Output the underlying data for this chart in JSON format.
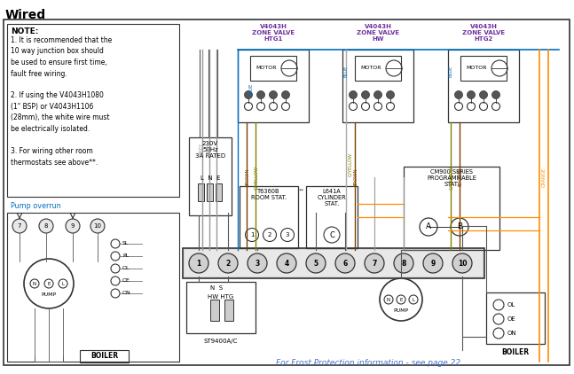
{
  "title": "Wired",
  "title_color": "#000000",
  "title_fontsize": 10,
  "bg_color": "#ffffff",
  "border_color": "#333333",
  "note_title": "NOTE:",
  "note_lines": [
    "1. It is recommended that the",
    "10 way junction box should",
    "be used to ensure first time,",
    "fault free wiring.",
    "",
    "2. If using the V4043H1080",
    "(1\" BSP) or V4043H1106",
    "(28mm), the white wire must",
    "be electrically isolated.",
    "",
    "3. For wiring other room",
    "thermostats see above**."
  ],
  "pump_overrun_label": "Pump overrun",
  "zone_valve_labels": [
    "V4043H\nZONE VALVE\nHTG1",
    "V4043H\nZONE VALVE\nHW",
    "V4043H\nZONE VALVE\nHTG2"
  ],
  "zone_valve_label_color": "#7030A0",
  "power_label": "230V\n50Hz\n3A RATED",
  "terminal_label": "L  N  E",
  "st9400_label": "ST9400A/C",
  "hw_htg_label": "HW HTG",
  "ns_label": "N  S",
  "t6360b_label": "T6360B\nROOM STAT.",
  "l641a_label": "L641A\nCYLINDER\nSTAT.",
  "cm900_label": "CM900 SERIES\nPROGRAMMABLE\nSTAT.",
  "pump_label": "PUMP",
  "nel_label": "N E L",
  "boiler_label": "BOILER",
  "frost_text": "For Frost Protection information - see page 22",
  "frost_color": "#4472C4",
  "wire_colors": {
    "grey": "#999999",
    "blue": "#0070C0",
    "brown": "#7B3F00",
    "gyellow": "#808000",
    "orange": "#FF8C00",
    "black": "#222222",
    "white": "#ffffff"
  },
  "motor_label": "MOTOR"
}
